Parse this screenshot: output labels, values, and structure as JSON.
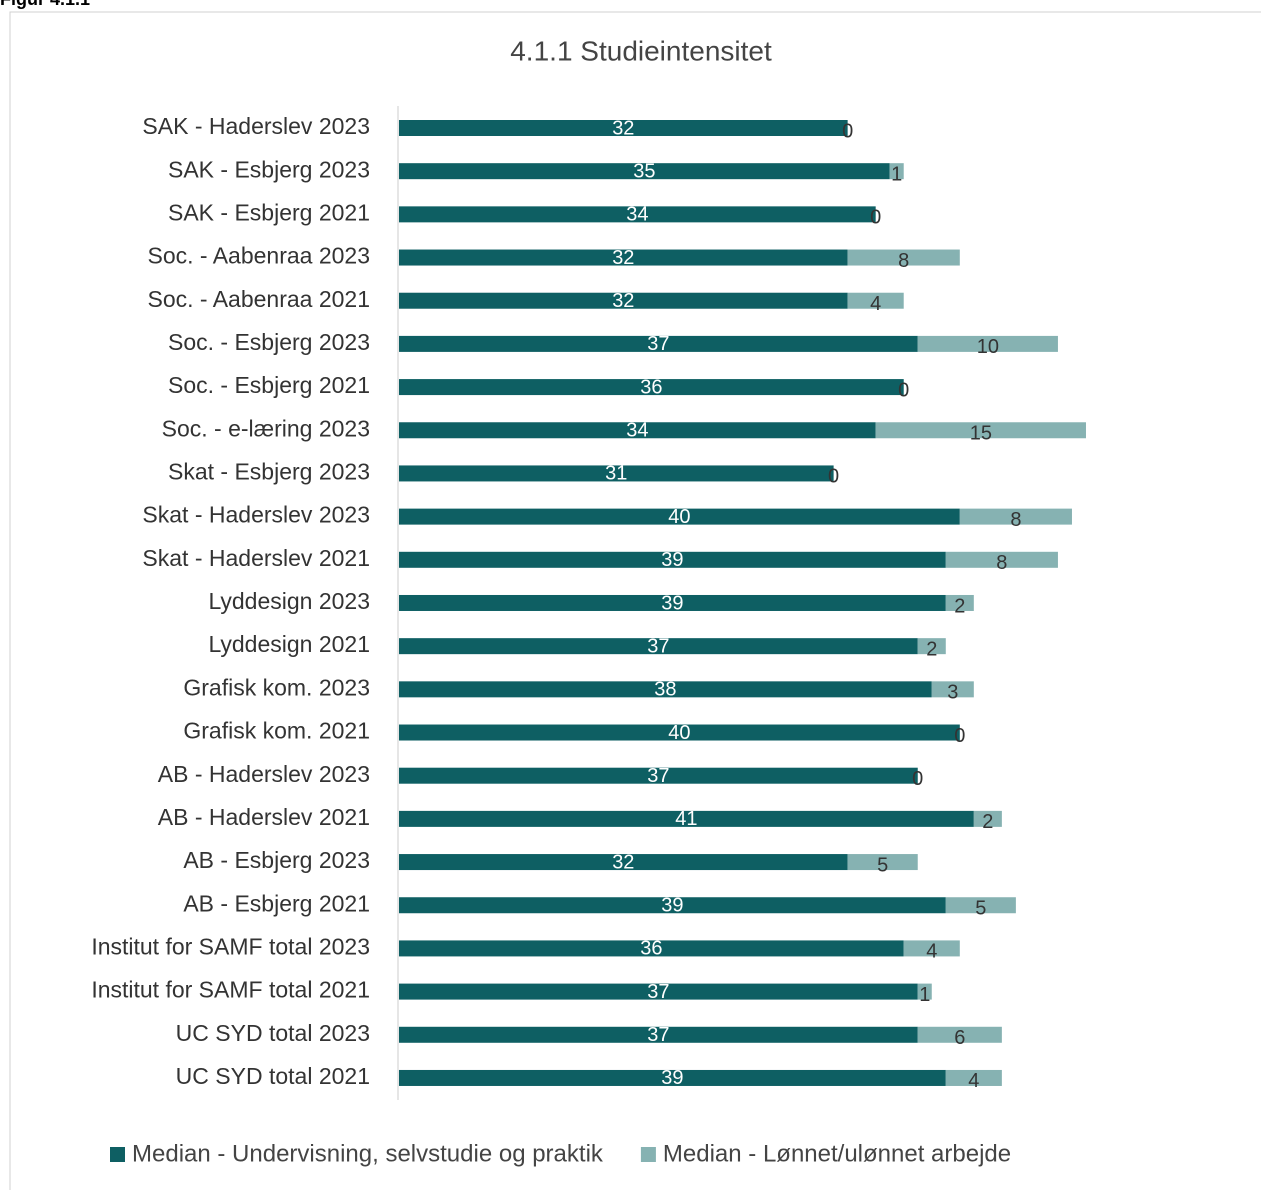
{
  "figure_label": "Figur 4.1.1",
  "chart_data": {
    "type": "stacked-barh",
    "title": "4.1.1 Studieintensitet",
    "categories": [
      "SAK - Haderslev 2023",
      "SAK - Esbjerg 2023",
      "SAK - Esbjerg 2021",
      "Soc. - Aabenraa 2023",
      "Soc. - Aabenraa 2021",
      "Soc. - Esbjerg 2023",
      "Soc. - Esbjerg 2021",
      "Soc. - e-læring 2023",
      "Skat - Esbjerg 2023",
      "Skat - Haderslev 2023",
      "Skat - Haderslev 2021",
      "Lyddesign 2023",
      "Lyddesign 2021",
      "Grafisk kom. 2023",
      "Grafisk kom. 2021",
      "AB - Haderslev 2023",
      "AB - Haderslev 2021",
      "AB - Esbjerg 2023",
      "AB - Esbjerg 2021",
      "Institut for SAMF total 2023",
      "Institut for SAMF total 2021",
      "UC SYD total 2023",
      "UC SYD total 2021"
    ],
    "series": [
      {
        "name": "Median - Undervisning, selvstudie og praktik",
        "color": "#0e5f63",
        "label_color": "#ffffff",
        "values": [
          32,
          35,
          34,
          32,
          32,
          37,
          36,
          34,
          31,
          40,
          39,
          39,
          37,
          38,
          40,
          37,
          41,
          32,
          39,
          36,
          37,
          37,
          39
        ]
      },
      {
        "name": "Median - Lønnet/ulønnet arbejde",
        "color": "#86b2b2",
        "label_color": "#333333",
        "values": [
          0,
          1,
          0,
          8,
          4,
          10,
          0,
          15,
          0,
          8,
          8,
          2,
          2,
          3,
          0,
          0,
          2,
          5,
          5,
          4,
          1,
          6,
          4
        ]
      }
    ],
    "xlim": [
      0,
      50
    ],
    "legend": "bottom"
  }
}
